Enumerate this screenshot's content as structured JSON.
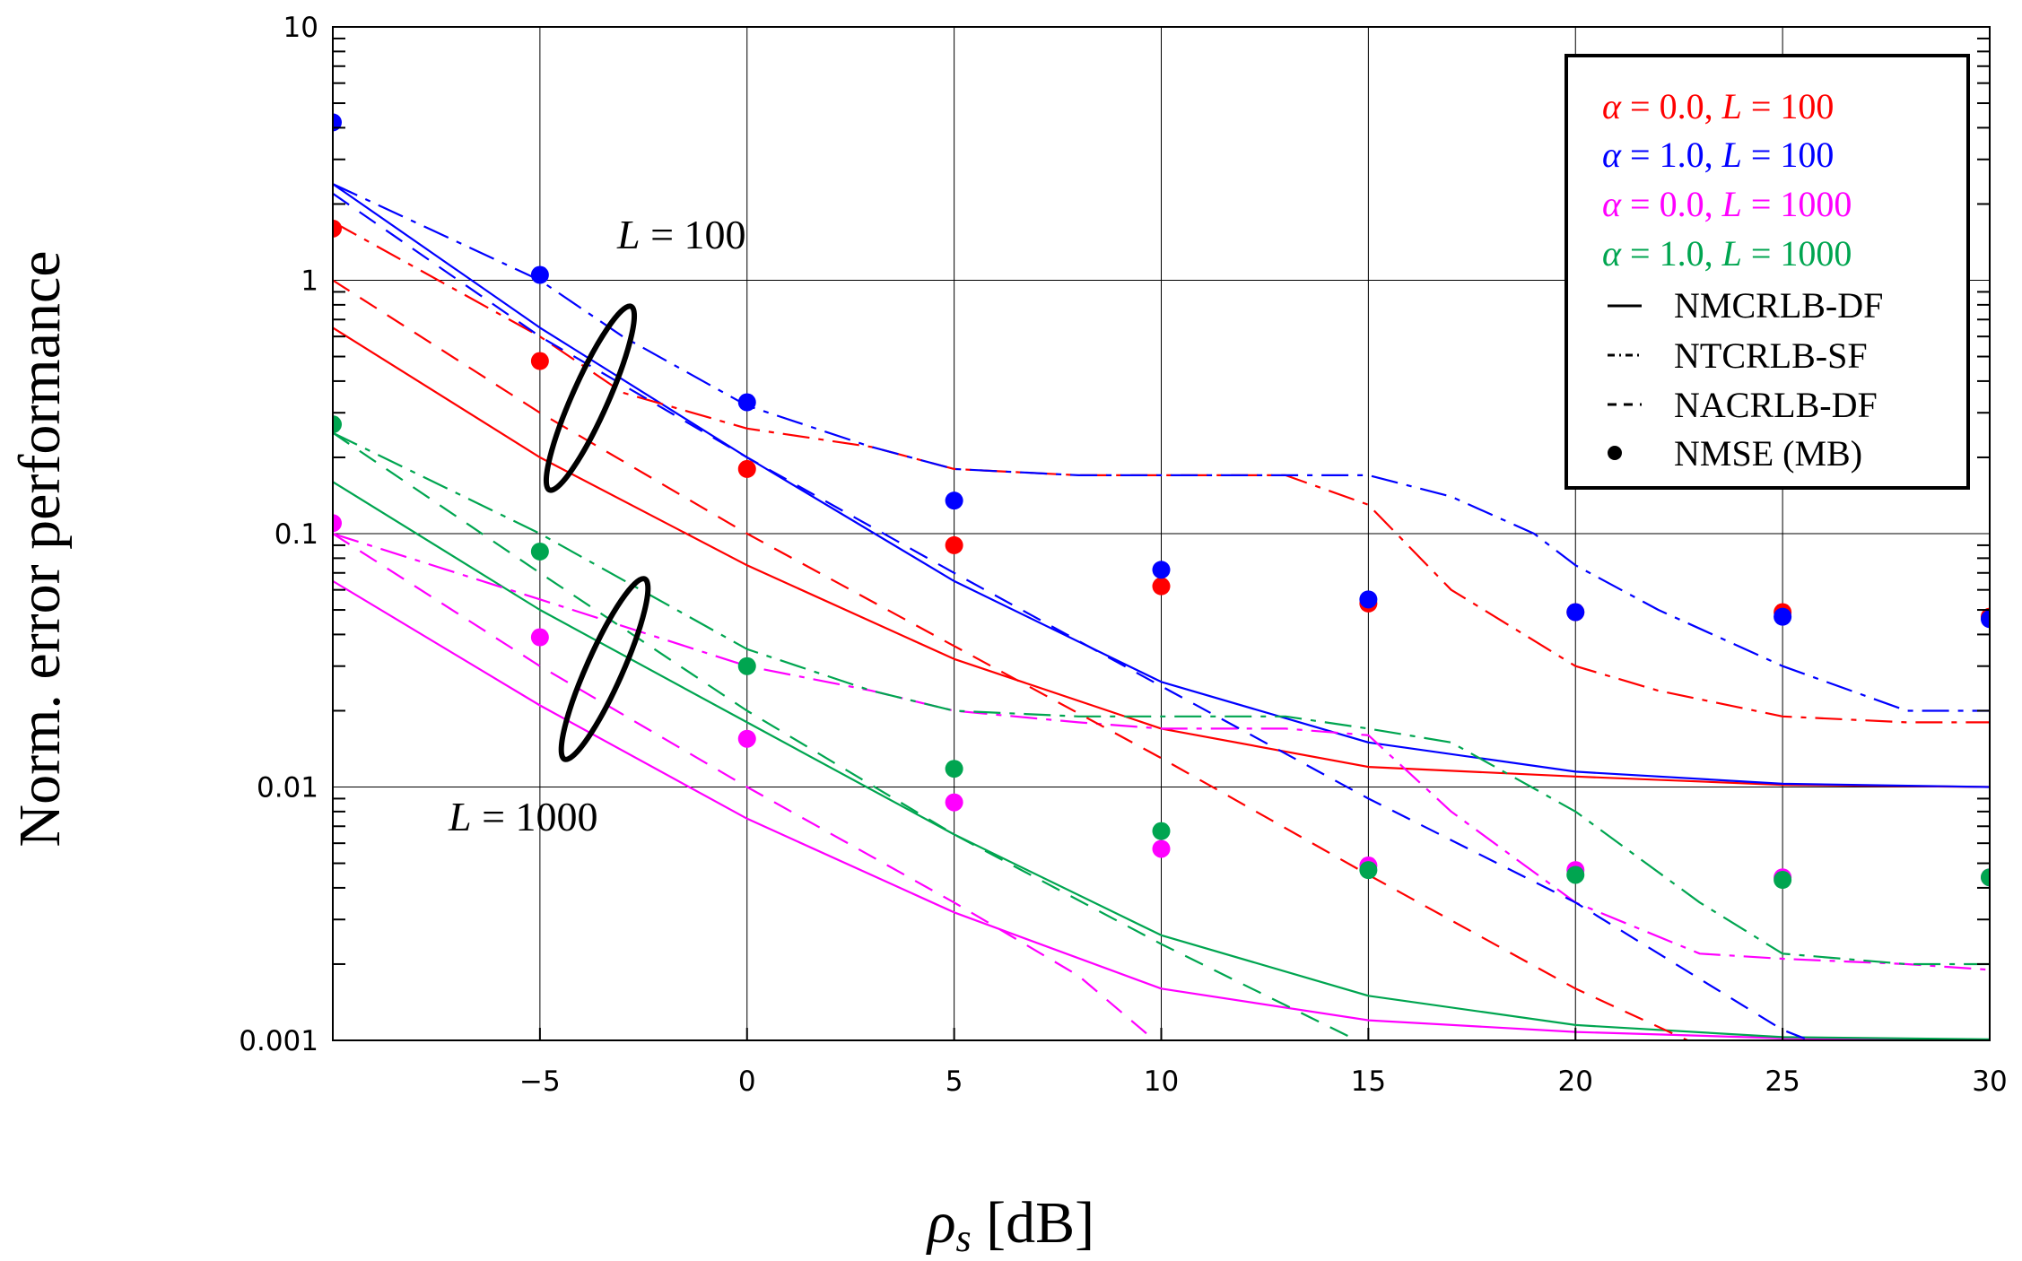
{
  "chart_data": {
    "type": "line",
    "xlabel_symbol": "ρ",
    "xlabel_sub": "s",
    "xlabel_unit": " [dB]",
    "ylabel": "Norm. error performance",
    "xlim": [
      -10,
      30
    ],
    "ylim": [
      0.001,
      10
    ],
    "yscale": "log",
    "x_ticks": [
      -5,
      0,
      5,
      10,
      15,
      20,
      25,
      30
    ],
    "x_tick_labels": [
      "−5",
      "0",
      "5",
      "10",
      "15",
      "20",
      "25",
      "30"
    ],
    "y_ticks": [
      0.001,
      0.01,
      0.1,
      1,
      10
    ],
    "y_tick_labels": [
      "0.001",
      "0.01",
      "0.1",
      "1",
      "10"
    ],
    "legend": {
      "placement": "top-right",
      "entries": [
        {
          "alpha": "0.0",
          "L": "100",
          "color": "#ff0000"
        },
        {
          "alpha": "1.0",
          "L": "100",
          "color": "#0000ff"
        },
        {
          "alpha": "0.0",
          "L": "1000",
          "color": "#ff00ff"
        },
        {
          "alpha": "1.0",
          "L": "1000",
          "color": "#00a550"
        }
      ],
      "styles": [
        {
          "label": "NMCRLB-DF",
          "style": "solid"
        },
        {
          "label": "NTCRLB-SF",
          "style": "dashdot"
        },
        {
          "label": "NACRLB-DF",
          "style": "dashed"
        },
        {
          "label": "NMSE (MB)",
          "style": "marker"
        }
      ]
    },
    "annotations": [
      {
        "label": "L",
        "value": " = 100"
      },
      {
        "label": "L",
        "value": " = 1000"
      }
    ],
    "series": [
      {
        "name": "NMCRLB-DF α=0.0 L=100",
        "color": "#ff0000",
        "style": "solid",
        "x": [
          -10,
          -5,
          0,
          5,
          10,
          15,
          20,
          25,
          30
        ],
        "y": [
          0.65,
          0.2,
          0.075,
          0.032,
          0.017,
          0.012,
          0.011,
          0.0102,
          0.01
        ]
      },
      {
        "name": "NMCRLB-DF α=1.0 L=100",
        "color": "#0000ff",
        "style": "solid",
        "x": [
          -10,
          -5,
          0,
          5,
          10,
          15,
          20,
          25,
          30
        ],
        "y": [
          2.4,
          0.65,
          0.2,
          0.065,
          0.026,
          0.015,
          0.0115,
          0.0103,
          0.01
        ]
      },
      {
        "name": "NMCRLB-DF α=0.0 L=1000",
        "color": "#ff00ff",
        "style": "solid",
        "x": [
          -10,
          -5,
          0,
          5,
          10,
          15,
          20,
          25,
          30
        ],
        "y": [
          0.065,
          0.021,
          0.0075,
          0.0032,
          0.0016,
          0.0012,
          0.00108,
          0.00102,
          0.001
        ]
      },
      {
        "name": "NMCRLB-DF α=1.0 L=1000",
        "color": "#00a550",
        "style": "solid",
        "x": [
          -10,
          -5,
          0,
          5,
          10,
          15,
          20,
          25,
          30
        ],
        "y": [
          0.16,
          0.05,
          0.018,
          0.0065,
          0.0026,
          0.0015,
          0.00115,
          0.00103,
          0.00101
        ]
      },
      {
        "name": "NTCRLB-SF α=0.0 L=100",
        "color": "#ff0000",
        "style": "dashdot",
        "x": [
          -10,
          -5,
          -3,
          0,
          3,
          5,
          8,
          10,
          13,
          15,
          17,
          20,
          22,
          25,
          28,
          30
        ],
        "y": [
          1.7,
          0.6,
          0.36,
          0.26,
          0.22,
          0.18,
          0.17,
          0.17,
          0.17,
          0.13,
          0.06,
          0.03,
          0.024,
          0.019,
          0.018,
          0.018
        ]
      },
      {
        "name": "NTCRLB-SF α=1.0 L=100",
        "color": "#0000ff",
        "style": "dashdot",
        "x": [
          -10,
          -5,
          -3,
          0,
          3,
          5,
          8,
          10,
          13,
          15,
          17,
          19,
          20,
          22,
          25,
          28,
          30
        ],
        "y": [
          2.4,
          1.0,
          0.6,
          0.32,
          0.22,
          0.18,
          0.17,
          0.17,
          0.17,
          0.17,
          0.14,
          0.1,
          0.075,
          0.05,
          0.03,
          0.02,
          0.02
        ]
      },
      {
        "name": "NTCRLB-SF α=0.0 L=1000",
        "color": "#ff00ff",
        "style": "dashdot",
        "x": [
          -10,
          -5,
          0,
          3,
          5,
          8,
          10,
          13,
          15,
          17,
          20,
          23,
          25,
          28,
          30
        ],
        "y": [
          0.1,
          0.055,
          0.03,
          0.024,
          0.02,
          0.018,
          0.017,
          0.017,
          0.016,
          0.008,
          0.0035,
          0.0022,
          0.0021,
          0.002,
          0.0019
        ]
      },
      {
        "name": "NTCRLB-SF α=1.0 L=1000",
        "color": "#00a550",
        "style": "dashdot",
        "x": [
          -10,
          -5,
          0,
          3,
          5,
          8,
          10,
          13,
          15,
          17,
          20,
          23,
          25,
          28,
          30
        ],
        "y": [
          0.25,
          0.1,
          0.035,
          0.024,
          0.02,
          0.019,
          0.019,
          0.019,
          0.017,
          0.015,
          0.008,
          0.0035,
          0.0022,
          0.002,
          0.002
        ]
      },
      {
        "name": "NACRLB-DF α=0.0 L=100",
        "color": "#ff0000",
        "style": "dashed",
        "x": [
          -10,
          -5,
          0,
          5,
          10,
          15,
          20,
          23
        ],
        "y": [
          1.0,
          0.3,
          0.1,
          0.036,
          0.013,
          0.0045,
          0.0016,
          0.00095
        ]
      },
      {
        "name": "NACRLB-DF α=1.0 L=100",
        "color": "#0000ff",
        "style": "dashed",
        "x": [
          -10,
          -5,
          0,
          5,
          10,
          15,
          20,
          25,
          26
        ],
        "y": [
          2.2,
          0.6,
          0.2,
          0.07,
          0.025,
          0.009,
          0.0035,
          0.0011,
          0.00095
        ]
      },
      {
        "name": "NACRLB-DF α=0.0 L=1000",
        "color": "#ff00ff",
        "style": "dashed",
        "x": [
          -10,
          -5,
          0,
          5,
          8,
          10
        ],
        "y": [
          0.1,
          0.03,
          0.01,
          0.0035,
          0.0018,
          0.00095
        ]
      },
      {
        "name": "NACRLB-DF α=1.0 L=1000",
        "color": "#00a550",
        "style": "dashed",
        "x": [
          -10,
          -5,
          0,
          5,
          10,
          15
        ],
        "y": [
          0.25,
          0.07,
          0.02,
          0.0065,
          0.0024,
          0.00095
        ]
      },
      {
        "name": "NMSE (MB) α=0.0 L=100",
        "color": "#ff0000",
        "style": "marker",
        "x": [
          -10,
          -5,
          0,
          5,
          10,
          15,
          20,
          25,
          30
        ],
        "y": [
          1.6,
          0.48,
          0.18,
          0.09,
          0.062,
          0.053,
          0.049,
          0.049,
          0.047
        ]
      },
      {
        "name": "NMSE (MB) α=1.0 L=100",
        "color": "#0000ff",
        "style": "marker",
        "x": [
          -10,
          -5,
          0,
          5,
          10,
          15,
          20,
          25,
          30
        ],
        "y": [
          4.2,
          1.05,
          0.33,
          0.135,
          0.072,
          0.055,
          0.049,
          0.047,
          0.046
        ]
      },
      {
        "name": "NMSE (MB) α=0.0 L=1000",
        "color": "#ff00ff",
        "style": "marker",
        "x": [
          -10,
          -5,
          0,
          5,
          10,
          15,
          20,
          25,
          30
        ],
        "y": [
          0.11,
          0.039,
          0.0155,
          0.0087,
          0.0057,
          0.0049,
          0.0047,
          0.0044,
          0.0044
        ]
      },
      {
        "name": "NMSE (MB) α=1.0 L=1000",
        "color": "#00a550",
        "style": "marker",
        "x": [
          -10,
          -5,
          0,
          5,
          10,
          15,
          20,
          25,
          30
        ],
        "y": [
          0.27,
          0.085,
          0.03,
          0.0118,
          0.0067,
          0.0047,
          0.0045,
          0.0043,
          0.0044
        ]
      }
    ]
  }
}
